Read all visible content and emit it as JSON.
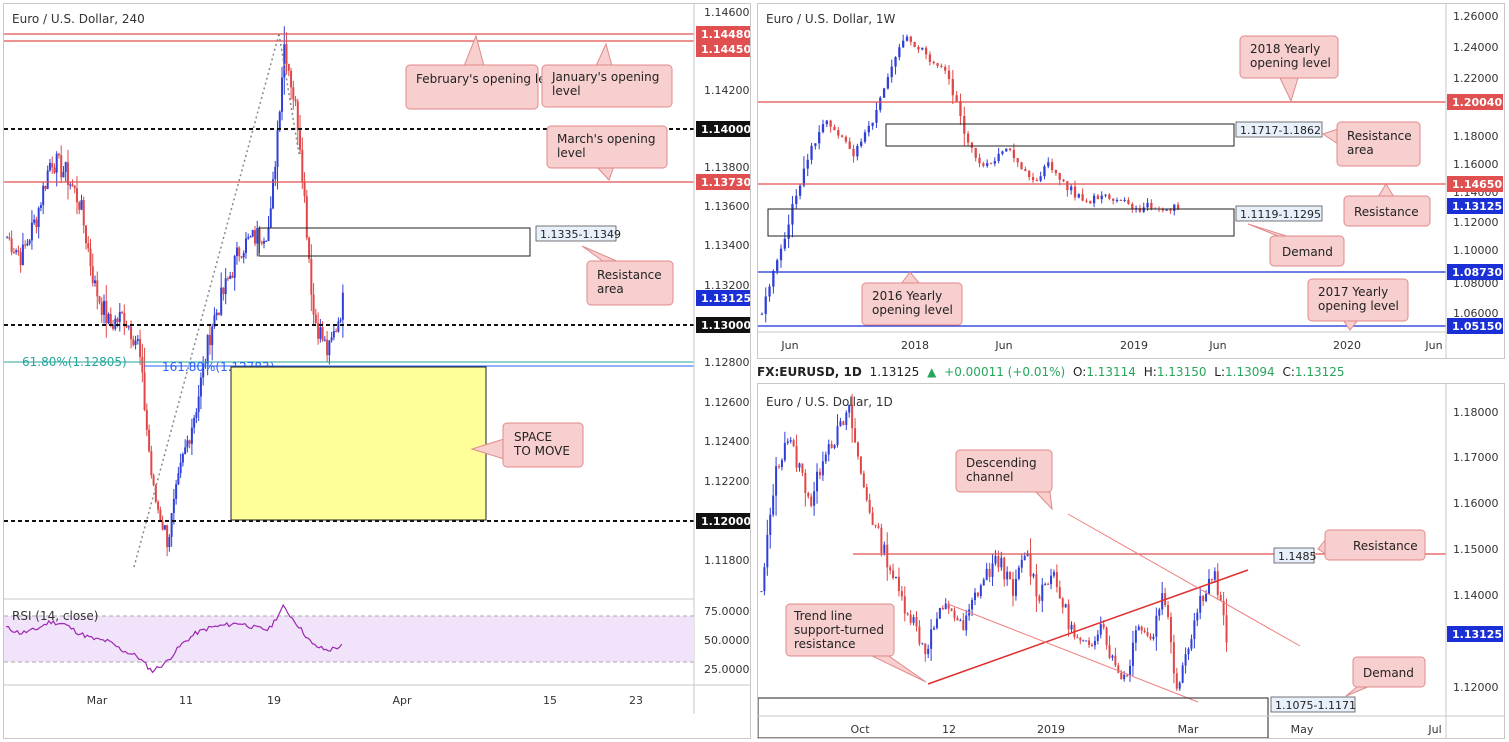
{
  "panels": {
    "h4": {
      "title": "Euro / U.S. Dollar, 240",
      "y_ticks": [
        "1.14600",
        "1.14200",
        "1.13800",
        "1.13600",
        "1.13400",
        "1.13200",
        "1.12800",
        "1.12600",
        "1.12400",
        "1.12200",
        "1.11800"
      ],
      "price_labels": [
        {
          "text": "1.14480",
          "color": "#e05050"
        },
        {
          "text": "1.14450",
          "color": "#e05050"
        },
        {
          "text": "1.14000",
          "color": "#111111"
        },
        {
          "text": "1.13730",
          "color": "#e05050"
        },
        {
          "text": "1.13125",
          "color": "#1a2fd6"
        },
        {
          "text": "1.13000",
          "color": "#111111"
        },
        {
          "text": "1.12000",
          "color": "#111111"
        }
      ],
      "x_ticks": [
        "Mar",
        "11",
        "19",
        "Apr",
        "15",
        "23"
      ],
      "annotations": [
        "February's opening level",
        "January's opening level",
        "March's opening level",
        "Resistance area",
        "SPACE TO MOVE"
      ],
      "zone_label": "1.1335-1.1349",
      "fib_labels": [
        "61.80%(1.12805)",
        "161.80%(1.12783)"
      ],
      "rsi_title": "RSI (14, close)",
      "rsi_ticks": [
        "75.0000",
        "50.0000",
        "25.0000"
      ]
    },
    "weekly": {
      "title": "Euro / U.S. Dollar, 1W",
      "y_ticks": [
        "1.26000",
        "1.24000",
        "1.22000",
        "1.18000",
        "1.16000",
        "1.14000",
        "1.12000",
        "1.10000",
        "1.08000",
        "1.06000"
      ],
      "price_labels": [
        {
          "text": "1.20040",
          "color": "#e05050"
        },
        {
          "text": "1.14650",
          "color": "#e05050"
        },
        {
          "text": "1.13125",
          "color": "#1a2fd6"
        },
        {
          "text": "1.08730",
          "color": "#1a2fd6"
        },
        {
          "text": "1.05150",
          "color": "#1a2fd6"
        }
      ],
      "x_ticks": [
        "Jun",
        "2018",
        "Jun",
        "2019",
        "Jun",
        "2020",
        "Jun"
      ],
      "annotations": [
        "2018 Yearly opening level",
        "Resistance area",
        "Resistance",
        "Demand",
        "2016 Yearly opening level",
        "2017 Yearly opening level"
      ],
      "zone_labels": [
        "1.1717-1.1862",
        "1.1119-1.1295"
      ]
    },
    "daily": {
      "header": {
        "symbol": "FX:EURUSD, 1D",
        "price": "1.13125",
        "change": "+0.00011 (+0.01%)",
        "o_label": "O:",
        "o": "1.13114",
        "h_label": "H:",
        "h": "1.13150",
        "l_label": "L:",
        "l": "1.13094",
        "c_label": "C:",
        "c": "1.13125"
      },
      "title": "Euro / U.S. Dollar, 1D",
      "y_ticks": [
        "1.18000",
        "1.17000",
        "1.16000",
        "1.15000",
        "1.14000",
        "1.12000"
      ],
      "price_labels": [
        {
          "text": "1.13125",
          "color": "#1a2fd6"
        }
      ],
      "x_ticks": [
        "Oct",
        "12",
        "2019",
        "Mar",
        "May",
        "Jul"
      ],
      "annotations": [
        "Descending channel",
        "Resistance",
        "Trend line support-turned resistance",
        "Demand"
      ],
      "zone_labels": [
        "1.1485",
        "1.1075-1.1171"
      ]
    }
  },
  "colors": {
    "bull": "#2f3fd8",
    "bear": "#e04848",
    "resistance": "#e05050",
    "support": "#1a2fd6",
    "note_bg": "#f8cfcf",
    "note_border": "#e08a8a",
    "rsi": "#9c27b0",
    "rsi_band": "#f1e4fa",
    "space_box": "#ffff99"
  },
  "chart_data": [
    {
      "type": "candlestick",
      "title": "Euro / U.S. Dollar, 240",
      "ylim": [
        1.1165,
        1.147
      ],
      "x_categories": [
        "Mar",
        "11",
        "19",
        "Apr",
        "15",
        "23"
      ],
      "levels": [
        {
          "value": 1.1448,
          "label": "1.14480",
          "style": "resistance"
        },
        {
          "value": 1.1445,
          "label": "1.14450",
          "style": "resistance"
        },
        {
          "value": 1.14,
          "label": "1.14000",
          "style": "dashed"
        },
        {
          "value": 1.1373,
          "label": "1.13730",
          "style": "resistance"
        },
        {
          "value": 1.13,
          "label": "1.13000",
          "style": "dashed"
        },
        {
          "value": 1.12,
          "label": "1.12000",
          "style": "dashed"
        }
      ],
      "zones": [
        {
          "label": "1.1335-1.1349",
          "low": 1.1335,
          "high": 1.1349
        }
      ],
      "fibonacci": [
        {
          "label": "61.80%(1.12805)",
          "value": 1.12805
        },
        {
          "label": "161.80%(1.12783)",
          "value": 1.12783
        }
      ],
      "last_price": 1.13125,
      "rsi": {
        "name": "RSI (14, close)",
        "levels": [
          70,
          30
        ],
        "ylim": [
          15,
          85
        ]
      }
    },
    {
      "type": "candlestick",
      "title": "Euro / U.S. Dollar, 1W",
      "ylim": [
        1.049,
        1.262
      ],
      "levels": [
        {
          "value": 1.2004,
          "label": "1.20040",
          "style": "resistance"
        },
        {
          "value": 1.1465,
          "label": "1.14650",
          "style": "resistance"
        },
        {
          "value": 1.0873,
          "label": "1.08730",
          "style": "support"
        },
        {
          "value": 1.0515,
          "label": "1.05150",
          "style": "support"
        }
      ],
      "zones": [
        {
          "label": "1.1717-1.1862",
          "low": 1.1717,
          "high": 1.1862
        },
        {
          "label": "1.1119-1.1295",
          "low": 1.1119,
          "high": 1.1295
        }
      ],
      "last_price": 1.13125
    },
    {
      "type": "candlestick",
      "title": "Euro / U.S. Dollar, 1D",
      "ylim": [
        1.113,
        1.186
      ],
      "levels": [
        {
          "value": 1.1485,
          "label": "1.1485",
          "style": "resistance"
        }
      ],
      "zones": [
        {
          "label": "1.1075-1.1171",
          "low": 1.1075,
          "high": 1.1171
        }
      ],
      "last_price": 1.13125
    }
  ]
}
